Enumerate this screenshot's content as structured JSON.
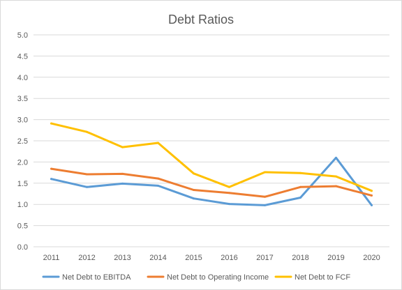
{
  "chart_data": {
    "type": "line",
    "title": "Debt Ratios",
    "xlabel": "",
    "ylabel": "",
    "categories": [
      "2011",
      "2012",
      "2013",
      "2014",
      "2015",
      "2016",
      "2017",
      "2018",
      "2019",
      "2020"
    ],
    "ylim": [
      0,
      5
    ],
    "yticks": [
      "0.0",
      "0.5",
      "1.0",
      "1.5",
      "2.0",
      "2.5",
      "3.0",
      "3.5",
      "4.0",
      "4.5",
      "5.0"
    ],
    "grid": true,
    "legend_position": "bottom",
    "series": [
      {
        "name": "Net Debt to EBITDA",
        "color": "#5B9BD5",
        "values": [
          1.6,
          1.41,
          1.49,
          1.44,
          1.14,
          1.01,
          0.98,
          1.16,
          2.1,
          0.98
        ]
      },
      {
        "name": "Net Debt to Operating Income",
        "color": "#ED7D31",
        "values": [
          1.84,
          1.71,
          1.72,
          1.61,
          1.34,
          1.27,
          1.18,
          1.41,
          1.43,
          1.21
        ]
      },
      {
        "name": "Net Debt to FCF",
        "color": "#FFC000",
        "values": [
          2.91,
          2.71,
          2.35,
          2.45,
          1.73,
          1.41,
          1.76,
          1.74,
          1.66,
          1.32
        ]
      }
    ]
  }
}
